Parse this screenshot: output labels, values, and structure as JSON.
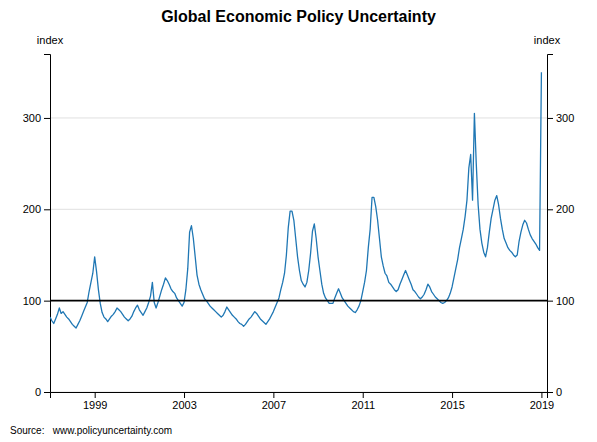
{
  "chart_data": {
    "type": "line",
    "title": "Global Economic Policy Uncertainty",
    "ylabel": "index",
    "y2label": "index",
    "source": "Source:   www.policyuncertainty.com",
    "reference_line": 100,
    "grid": true,
    "xlim": [
      1997.0,
      2019.25
    ],
    "xticks": [
      1999,
      2003,
      2007,
      2011,
      2015,
      2019
    ],
    "ylim": [
      0,
      370
    ],
    "yticks": [
      0,
      100,
      200,
      300
    ],
    "y2lim": [
      0,
      370
    ],
    "y2ticks": [
      0,
      100,
      200,
      300
    ],
    "x": [
      1997.0,
      1997.083,
      1997.167,
      1997.25,
      1997.333,
      1997.417,
      1997.5,
      1997.583,
      1997.667,
      1997.75,
      1997.833,
      1997.917,
      1998.0,
      1998.083,
      1998.167,
      1998.25,
      1998.333,
      1998.417,
      1998.5,
      1998.583,
      1998.667,
      1998.75,
      1998.833,
      1998.917,
      1999.0,
      1999.083,
      1999.167,
      1999.25,
      1999.333,
      1999.417,
      1999.5,
      1999.583,
      1999.667,
      1999.75,
      1999.833,
      1999.917,
      2000.0,
      2000.083,
      2000.167,
      2000.25,
      2000.333,
      2000.417,
      2000.5,
      2000.583,
      2000.667,
      2000.75,
      2000.833,
      2000.917,
      2001.0,
      2001.083,
      2001.167,
      2001.25,
      2001.333,
      2001.417,
      2001.5,
      2001.583,
      2001.667,
      2001.75,
      2001.833,
      2001.917,
      2002.0,
      2002.083,
      2002.167,
      2002.25,
      2002.333,
      2002.417,
      2002.5,
      2002.583,
      2002.667,
      2002.75,
      2002.833,
      2002.917,
      2003.0,
      2003.083,
      2003.167,
      2003.25,
      2003.333,
      2003.417,
      2003.5,
      2003.583,
      2003.667,
      2003.75,
      2003.833,
      2003.917,
      2004.0,
      2004.083,
      2004.167,
      2004.25,
      2004.333,
      2004.417,
      2004.5,
      2004.583,
      2004.667,
      2004.75,
      2004.833,
      2004.917,
      2005.0,
      2005.083,
      2005.167,
      2005.25,
      2005.333,
      2005.417,
      2005.5,
      2005.583,
      2005.667,
      2005.75,
      2005.833,
      2005.917,
      2006.0,
      2006.083,
      2006.167,
      2006.25,
      2006.333,
      2006.417,
      2006.5,
      2006.583,
      2006.667,
      2006.75,
      2006.833,
      2006.917,
      2007.0,
      2007.083,
      2007.167,
      2007.25,
      2007.333,
      2007.417,
      2007.5,
      2007.583,
      2007.667,
      2007.75,
      2007.833,
      2007.917,
      2008.0,
      2008.083,
      2008.167,
      2008.25,
      2008.333,
      2008.417,
      2008.5,
      2008.583,
      2008.667,
      2008.75,
      2008.833,
      2008.917,
      2009.0,
      2009.083,
      2009.167,
      2009.25,
      2009.333,
      2009.417,
      2009.5,
      2009.583,
      2009.667,
      2009.75,
      2009.833,
      2009.917,
      2010.0,
      2010.083,
      2010.167,
      2010.25,
      2010.333,
      2010.417,
      2010.5,
      2010.583,
      2010.667,
      2010.75,
      2010.833,
      2010.917,
      2011.0,
      2011.083,
      2011.167,
      2011.25,
      2011.333,
      2011.417,
      2011.5,
      2011.583,
      2011.667,
      2011.75,
      2011.833,
      2011.917,
      2012.0,
      2012.083,
      2012.167,
      2012.25,
      2012.333,
      2012.417,
      2012.5,
      2012.583,
      2012.667,
      2012.75,
      2012.833,
      2012.917,
      2013.0,
      2013.083,
      2013.167,
      2013.25,
      2013.333,
      2013.417,
      2013.5,
      2013.583,
      2013.667,
      2013.75,
      2013.833,
      2013.917,
      2014.0,
      2014.083,
      2014.167,
      2014.25,
      2014.333,
      2014.417,
      2014.5,
      2014.583,
      2014.667,
      2014.75,
      2014.833,
      2014.917,
      2015.0,
      2015.083,
      2015.167,
      2015.25,
      2015.333,
      2015.417,
      2015.5,
      2015.583,
      2015.667,
      2015.75,
      2015.833,
      2015.917,
      2016.0,
      2016.083,
      2016.167,
      2016.25,
      2016.333,
      2016.417,
      2016.5,
      2016.583,
      2016.667,
      2016.75,
      2016.833,
      2016.917,
      2017.0,
      2017.083,
      2017.167,
      2017.25,
      2017.333,
      2017.417,
      2017.5,
      2017.583,
      2017.667,
      2017.75,
      2017.833,
      2017.917,
      2018.0,
      2018.083,
      2018.167,
      2018.25,
      2018.333,
      2018.417,
      2018.5,
      2018.583,
      2018.667,
      2018.75,
      2018.833,
      2018.917,
      2019.0
    ],
    "values": [
      82,
      78,
      75,
      80,
      85,
      92,
      86,
      88,
      85,
      82,
      80,
      77,
      74,
      72,
      70,
      74,
      78,
      83,
      88,
      93,
      98,
      110,
      120,
      130,
      148,
      132,
      112,
      97,
      87,
      82,
      80,
      77,
      80,
      83,
      85,
      88,
      92,
      90,
      88,
      85,
      82,
      80,
      78,
      80,
      83,
      88,
      92,
      95,
      90,
      87,
      84,
      88,
      92,
      98,
      105,
      120,
      98,
      92,
      98,
      105,
      112,
      118,
      125,
      122,
      118,
      113,
      110,
      108,
      103,
      100,
      97,
      94,
      98,
      112,
      135,
      175,
      182,
      168,
      148,
      128,
      118,
      112,
      107,
      102,
      100,
      97,
      94,
      92,
      90,
      88,
      86,
      84,
      82,
      84,
      88,
      93,
      90,
      87,
      84,
      82,
      80,
      77,
      75,
      74,
      72,
      74,
      77,
      80,
      82,
      85,
      88,
      86,
      83,
      80,
      78,
      76,
      74,
      77,
      80,
      84,
      88,
      93,
      98,
      103,
      112,
      120,
      130,
      150,
      180,
      198,
      198,
      188,
      168,
      148,
      133,
      122,
      118,
      115,
      120,
      133,
      152,
      176,
      184,
      168,
      148,
      133,
      118,
      108,
      103,
      100,
      97,
      97,
      97,
      103,
      108,
      113,
      108,
      103,
      100,
      97,
      94,
      92,
      90,
      88,
      87,
      90,
      94,
      100,
      110,
      120,
      133,
      158,
      178,
      213,
      213,
      203,
      188,
      168,
      148,
      138,
      130,
      127,
      120,
      118,
      115,
      112,
      110,
      112,
      118,
      123,
      128,
      133,
      128,
      123,
      118,
      112,
      110,
      107,
      104,
      102,
      104,
      107,
      112,
      118,
      115,
      110,
      107,
      104,
      102,
      100,
      98,
      97,
      98,
      100,
      103,
      108,
      115,
      125,
      135,
      145,
      158,
      168,
      178,
      192,
      210,
      245,
      260,
      210,
      305,
      250,
      205,
      178,
      163,
      153,
      148,
      158,
      175,
      190,
      200,
      210,
      215,
      205,
      190,
      178,
      168,
      163,
      158,
      155,
      153,
      150,
      148,
      150,
      165,
      175,
      183,
      188,
      185,
      178,
      172,
      168,
      165,
      162,
      158,
      155,
      350
    ]
  }
}
